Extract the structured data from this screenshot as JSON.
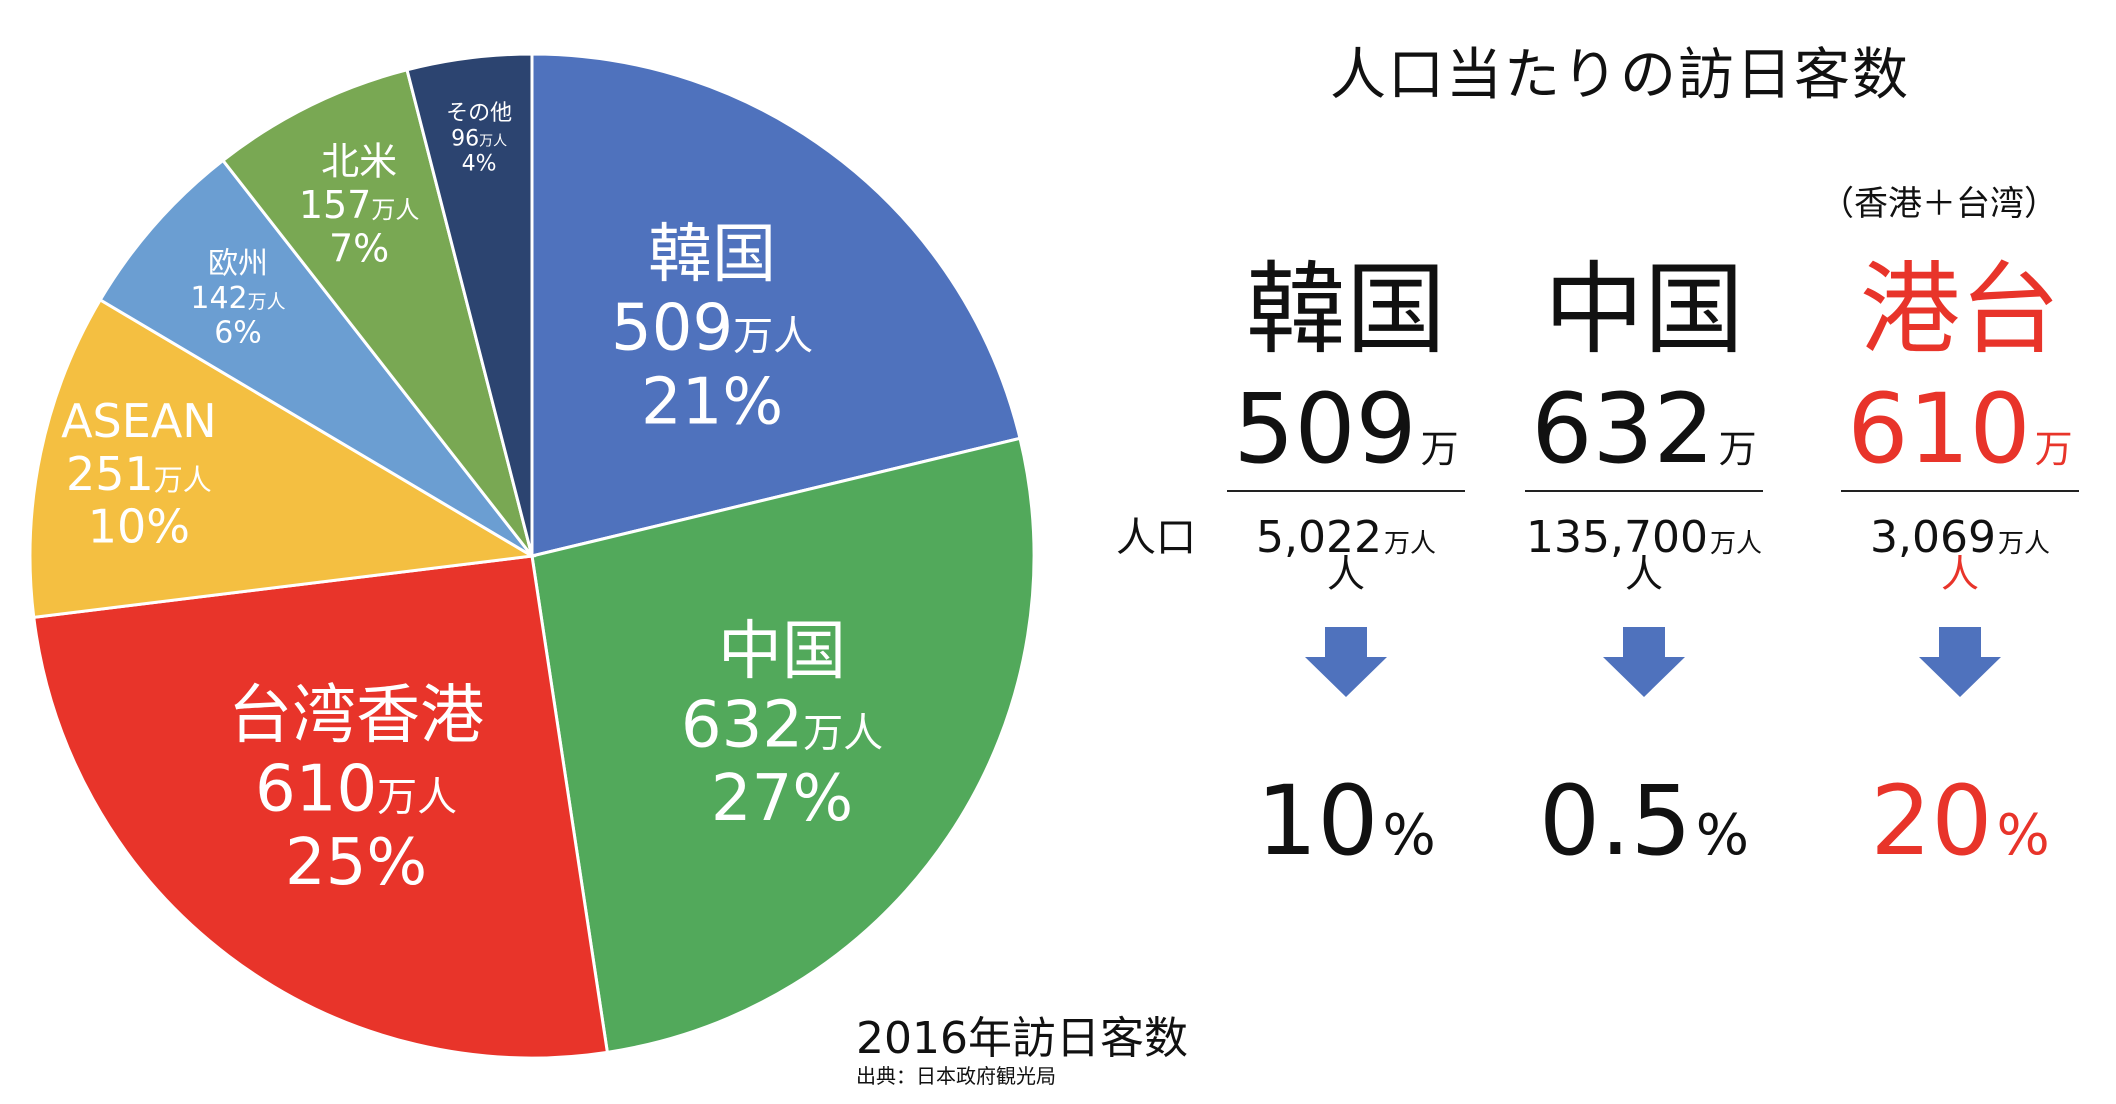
{
  "chart_data": {
    "type": "pie",
    "subtitle": "2016年訪日客数",
    "source": "出典：日本政府観光局",
    "slices": [
      {
        "label": "韓国",
        "amount": "509",
        "unit": "万人",
        "percent_label": "21%",
        "percent": 21,
        "color": "#4f72bd"
      },
      {
        "label": "中国",
        "amount": "632",
        "unit": "万人",
        "percent_label": "27%",
        "percent": 27,
        "color": "#52a95b"
      },
      {
        "label": "台湾香港",
        "amount": "610",
        "unit": "万人",
        "percent_label": "25%",
        "percent": 25,
        "color": "#e8342a"
      },
      {
        "label": "ASEAN",
        "amount": "251",
        "unit": "万人",
        "percent_label": "10%",
        "percent": 10,
        "color": "#f4bf41"
      },
      {
        "label": "欧州",
        "amount": "142",
        "unit": "万人",
        "percent_label": "6%",
        "percent": 6,
        "color": "#6b9ed2"
      },
      {
        "label": "北米",
        "amount": "157",
        "unit": "万人",
        "percent_label": "7%",
        "percent": 7,
        "color": "#79a853"
      },
      {
        "label": "その他",
        "amount": "96",
        "unit": "万人",
        "percent_label": "4%",
        "percent": 4,
        "color": "#2c4470"
      }
    ]
  },
  "comparison": {
    "title": "人口当たりの訪日客数",
    "note": "（香港＋台湾）",
    "population_label": "人口",
    "columns": [
      {
        "name": "韓国",
        "visitors": "509",
        "visitors_unit": "万人",
        "population": "5,022",
        "population_unit": "万人",
        "rate": "10",
        "rate_unit": "%",
        "color": "#111111"
      },
      {
        "name": "中国",
        "visitors": "632",
        "visitors_unit": "万人",
        "population": "135,700",
        "population_unit": "万人",
        "rate": "0.5",
        "rate_unit": "%",
        "color": "#111111"
      },
      {
        "name": "港台",
        "visitors": "610",
        "visitors_unit": "万人",
        "population": "3,069",
        "population_unit": "万人",
        "rate": "20",
        "rate_unit": "%",
        "color": "#e8342a"
      }
    ],
    "arrow_color": "#4f72bd"
  }
}
